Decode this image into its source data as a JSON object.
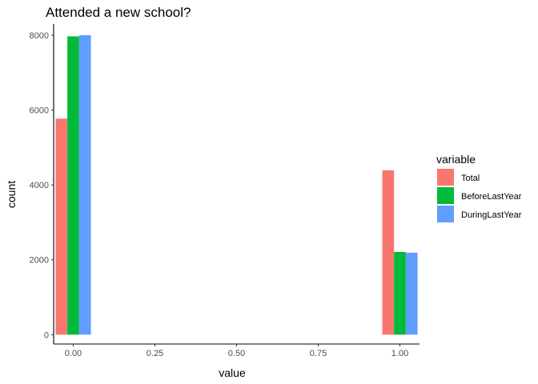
{
  "chart_data": {
    "type": "bar",
    "title": "Attended a new school?",
    "xlabel": "value",
    "ylabel": "count",
    "xlim": [
      -0.06,
      1.06
    ],
    "ylim": [
      -250,
      8300
    ],
    "x_ticks": [
      0.0,
      0.25,
      0.5,
      0.75,
      1.0
    ],
    "x_tick_labels": [
      "0.00",
      "0.25",
      "0.50",
      "0.75",
      "1.00"
    ],
    "y_ticks": [
      0,
      2000,
      4000,
      6000,
      8000
    ],
    "y_tick_labels": [
      "0",
      "2000",
      "4000",
      "6000",
      "8000"
    ],
    "categories": [
      0,
      1
    ],
    "bar_width": 0.036,
    "series": [
      {
        "name": "Total",
        "color": "#F8766D",
        "values": [
          5770,
          4390
        ]
      },
      {
        "name": "BeforeLastYear",
        "color": "#00BA38",
        "values": [
          7970,
          2210
        ]
      },
      {
        "name": "DuringLastYear",
        "color": "#619CFF",
        "values": [
          8000,
          2190
        ]
      }
    ],
    "legend": {
      "title": "variable",
      "position": "right"
    },
    "grid": false
  }
}
